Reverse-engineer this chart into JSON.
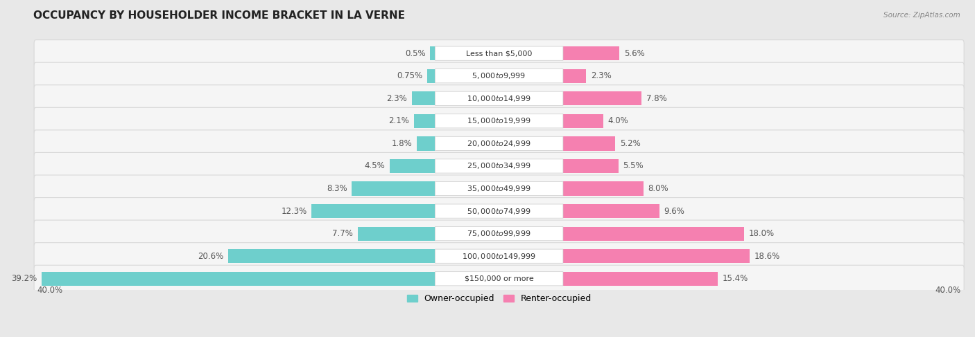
{
  "title": "OCCUPANCY BY HOUSEHOLDER INCOME BRACKET IN LA VERNE",
  "source": "Source: ZipAtlas.com",
  "categories": [
    "Less than $5,000",
    "$5,000 to $9,999",
    "$10,000 to $14,999",
    "$15,000 to $19,999",
    "$20,000 to $24,999",
    "$25,000 to $34,999",
    "$35,000 to $49,999",
    "$50,000 to $74,999",
    "$75,000 to $99,999",
    "$100,000 to $149,999",
    "$150,000 or more"
  ],
  "owner_pct": [
    0.5,
    0.75,
    2.3,
    2.1,
    1.8,
    4.5,
    8.3,
    12.3,
    7.7,
    20.6,
    39.2
  ],
  "renter_pct": [
    5.6,
    2.3,
    7.8,
    4.0,
    5.2,
    5.5,
    8.0,
    9.6,
    18.0,
    18.6,
    15.4
  ],
  "owner_color": "#6ecfcc",
  "renter_color": "#f580b0",
  "bg_color": "#e8e8e8",
  "row_bg_color": "#f5f5f5",
  "row_border_color": "#d8d8d8",
  "pct_label_color": "#555555",
  "cat_label_color": "#333333",
  "title_color": "#222222",
  "source_color": "#888888",
  "axis_label_left": "40.0%",
  "axis_label_right": "40.0%",
  "max_val": 40.0,
  "title_fontsize": 11,
  "pct_fontsize": 8.5,
  "cat_fontsize": 8,
  "legend_fontsize": 9,
  "legend_labels": [
    "Owner-occupied",
    "Renter-occupied"
  ]
}
